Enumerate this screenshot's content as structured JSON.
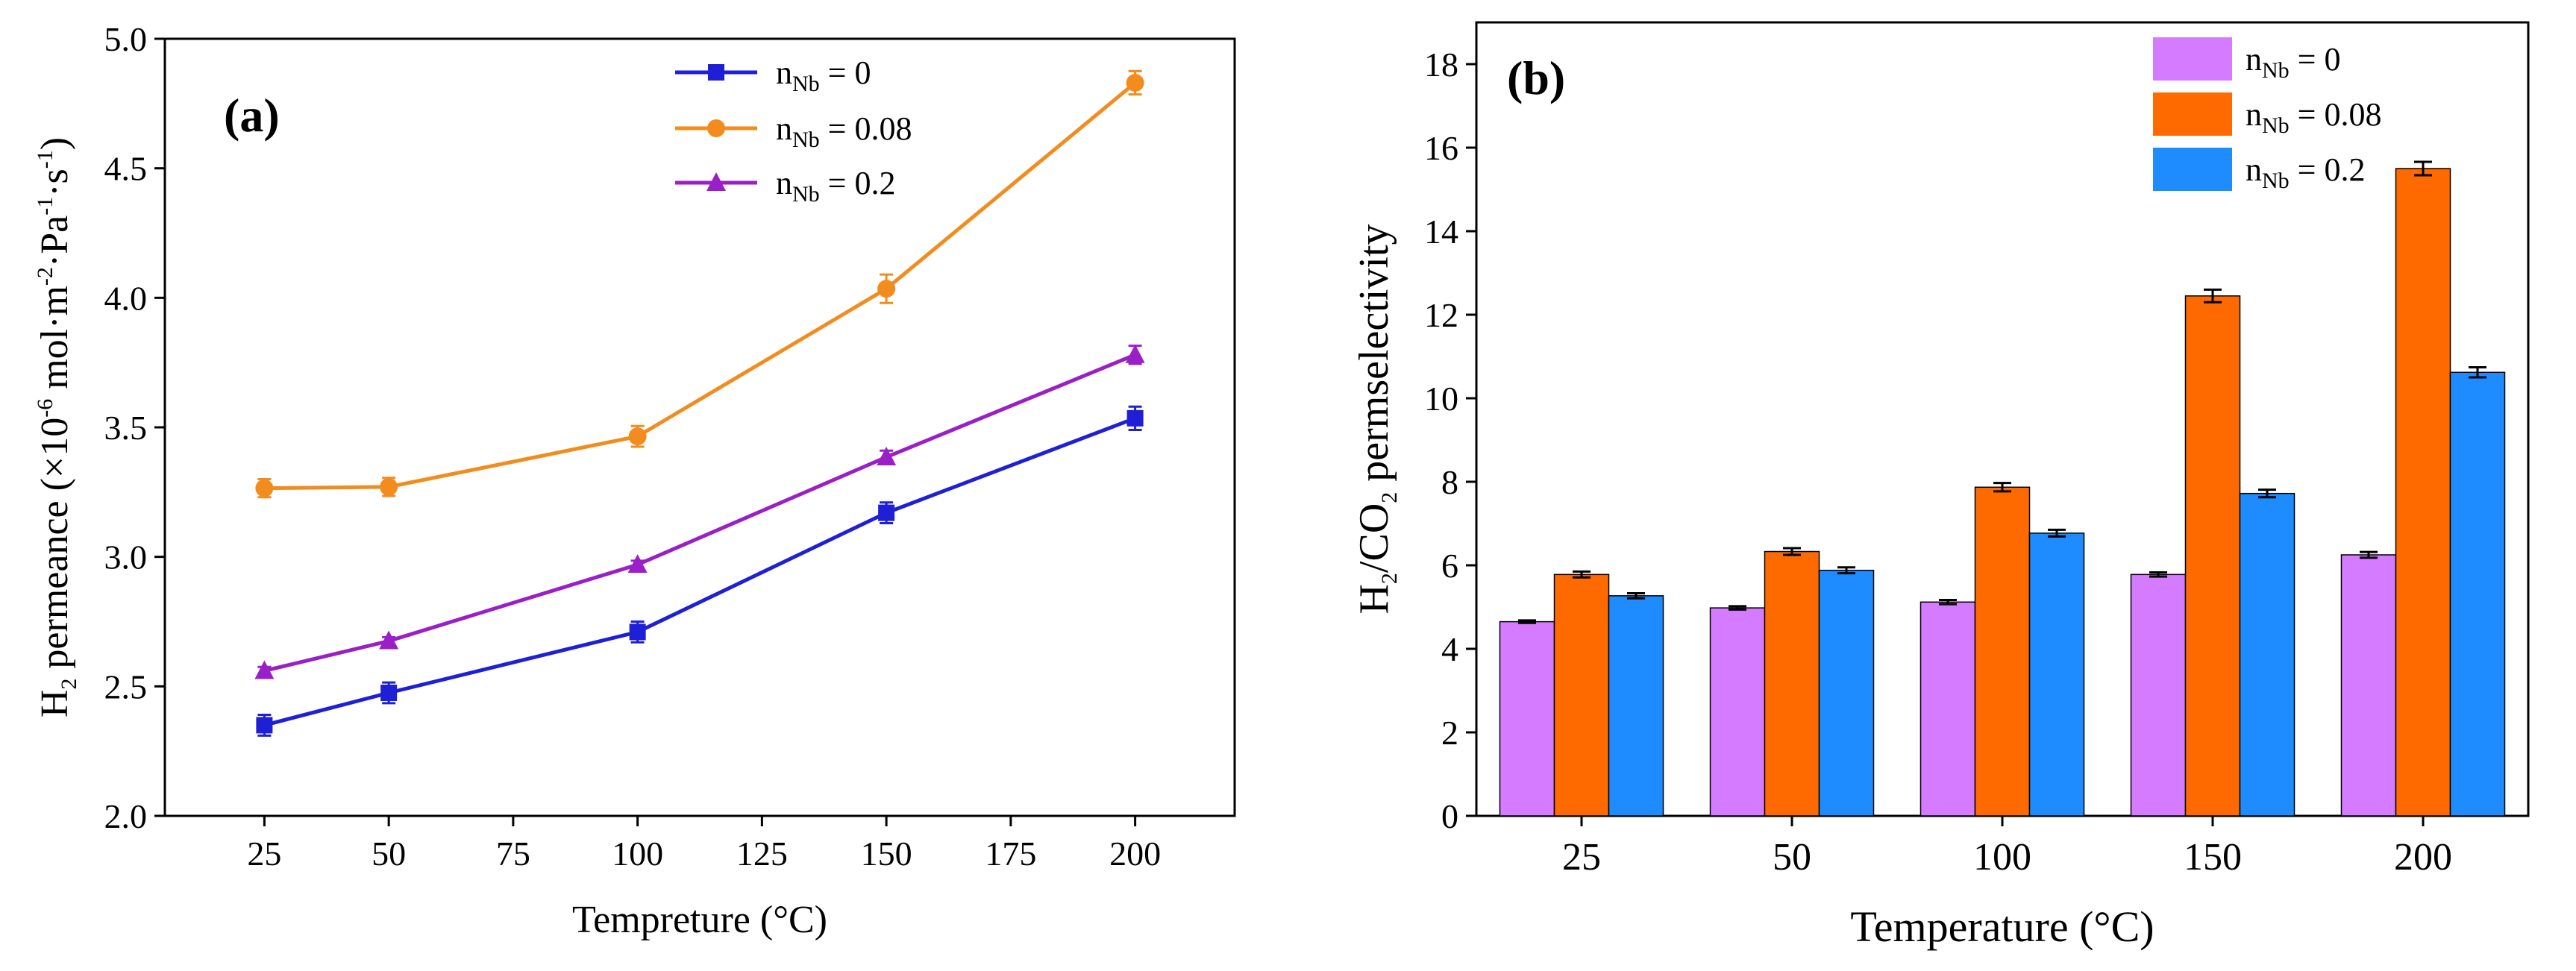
{
  "chart_data": [
    {
      "panel": "(a)",
      "type": "line",
      "xlabel": "Tempreture (°C)",
      "ylabel": "H2 permeance (×10-6 mol·m-2·Pa-1·s-1)",
      "xlim": [
        5,
        220
      ],
      "ylim": [
        2.0,
        5.0
      ],
      "xticks": [
        25,
        50,
        75,
        100,
        125,
        150,
        175,
        200
      ],
      "yticks": [
        "2.0",
        "2.5",
        "3.0",
        "3.5",
        "4.0",
        "4.5",
        "5.0"
      ],
      "x": [
        25,
        50,
        100,
        150,
        200
      ],
      "legend_position": "top-right",
      "series": [
        {
          "name": "nNb = 0",
          "color": "#1f1fd6",
          "marker": "square",
          "values": [
            2.35,
            2.475,
            2.71,
            3.17,
            3.535
          ],
          "errors": [
            0.04,
            0.04,
            0.04,
            0.04,
            0.045
          ]
        },
        {
          "name": "nNb = 0.08",
          "color": "#f28c1e",
          "marker": "circle",
          "values": [
            3.265,
            3.27,
            3.465,
            4.035,
            4.83
          ],
          "errors": [
            0.035,
            0.035,
            0.04,
            0.055,
            0.045
          ]
        },
        {
          "name": "nNb = 0.2",
          "color": "#9b1fc7",
          "marker": "triangle",
          "values": [
            2.56,
            2.675,
            2.97,
            3.385,
            3.78
          ],
          "errors": [
            0.015,
            0.015,
            0.015,
            0.025,
            0.035
          ]
        }
      ]
    },
    {
      "panel": "(b)",
      "type": "bar",
      "xlabel": "Temperature (°C)",
      "ylabel": "H2/CO2 permselectivity",
      "ylim": [
        0,
        19
      ],
      "yticks": [
        "0",
        "2",
        "4",
        "6",
        "8",
        "10",
        "12",
        "14",
        "16",
        "18"
      ],
      "categories": [
        "25",
        "50",
        "100",
        "150",
        "200"
      ],
      "legend_position": "top-right",
      "series": [
        {
          "name": "nNb = 0",
          "color": "#d57bff",
          "values": [
            4.65,
            4.98,
            5.12,
            5.78,
            6.25
          ],
          "errors": [
            0.03,
            0.04,
            0.05,
            0.05,
            0.07
          ]
        },
        {
          "name": "nNb = 0.08",
          "color": "#ff6a00",
          "values": [
            5.78,
            6.33,
            7.87,
            12.45,
            15.5
          ],
          "errors": [
            0.07,
            0.08,
            0.1,
            0.15,
            0.16
          ]
        },
        {
          "name": "nNb = 0.2",
          "color": "#1e8cff",
          "values": [
            5.27,
            5.88,
            6.77,
            7.72,
            10.62
          ],
          "errors": [
            0.06,
            0.07,
            0.08,
            0.09,
            0.12
          ]
        }
      ]
    }
  ],
  "legend_text": {
    "n": "n",
    "nb": "Nb",
    "eq_0": " = 0",
    "eq_008": " = 0.08",
    "eq_02": " = 0.2"
  },
  "axis_title_parts": {
    "a_y_H": "H",
    "a_y_2": "2",
    "a_y_rest1": " permeance (×10",
    "a_y_m6": "-6",
    "a_y_rest2": " mol·m",
    "a_y_m2": "-2",
    "a_y_rest3": "·Pa",
    "a_y_m1a": "-1",
    "a_y_rest4": "·s",
    "a_y_m1b": "-1",
    "a_y_rest5": ")",
    "b_y_H": "H",
    "b_y_2a": "2",
    "b_y_mid": "/CO",
    "b_y_2b": "2",
    "b_y_rest": "  permselectivity"
  }
}
